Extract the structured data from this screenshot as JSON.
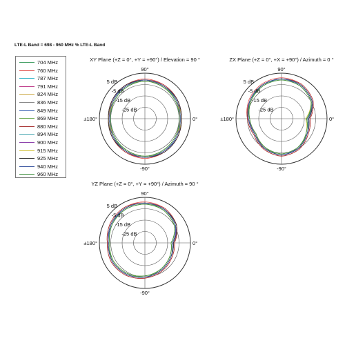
{
  "header": "LTE-L  Band = 698 - 960 MHz % LTE-L Band",
  "legend": [
    {
      "label": "704 MHz",
      "color": "#4aa36a"
    },
    {
      "label": "760 MHz",
      "color": "#e0504d"
    },
    {
      "label": "787 MHz",
      "color": "#31b4c6"
    },
    {
      "label": "791 MHz",
      "color": "#c0408c"
    },
    {
      "label": "824 MHz",
      "color": "#c8a43a"
    },
    {
      "label": "836 MHz",
      "color": "#8a8a8a"
    },
    {
      "label": "849 MHz",
      "color": "#4469b7"
    },
    {
      "label": "869 MHz",
      "color": "#6aa84f"
    },
    {
      "label": "880 MHz",
      "color": "#a83232"
    },
    {
      "label": "894 MHz",
      "color": "#46a5b0"
    },
    {
      "label": "900 MHz",
      "color": "#8e44ad"
    },
    {
      "label": "915 MHz",
      "color": "#d3c23a"
    },
    {
      "label": "925 MHz",
      "color": "#2f2f2f"
    },
    {
      "label": "940 MHz",
      "color": "#3a56a0"
    },
    {
      "label": "960 MHz",
      "color": "#3e8e3e"
    }
  ],
  "chart_data": [
    {
      "type": "line",
      "subtype": "polar",
      "title": "XY Plane (+Z = 0°, +Y = +90°) / Elevation = 90 °",
      "ring_labels": [
        "5 dB",
        "-5 dB",
        "-15 dB",
        "-25 dB"
      ],
      "ring_values": [
        5,
        -5,
        -15,
        -25
      ],
      "rlim": [
        -35,
        5
      ],
      "angle_labels": {
        "top": "90°",
        "right": "0°",
        "left": "±180°",
        "bottom": "-90°"
      },
      "angles_deg": [
        0,
        30,
        60,
        90,
        120,
        150,
        180,
        210,
        240,
        270,
        300,
        330
      ],
      "series_gain_db": [
        [
          -4,
          -3,
          -2,
          -1,
          -2,
          -3,
          -4,
          -3,
          -2,
          -1,
          -2,
          -3
        ],
        [
          -3,
          -2,
          -1,
          0,
          -1,
          -2,
          -3,
          -2,
          -1,
          0,
          -1,
          -2
        ],
        [
          -5,
          -4,
          -3,
          -2,
          -3,
          -4,
          -5,
          -4,
          -3,
          -2,
          -3,
          -4
        ],
        [
          -4,
          -3,
          -2,
          -1,
          -1,
          -2,
          -4,
          -3,
          -2,
          -1,
          -2,
          -3
        ],
        [
          -3,
          -3,
          -2,
          -1,
          -2,
          -3,
          -3,
          -3,
          -2,
          -1,
          -2,
          -3
        ],
        [
          -4,
          -3,
          -2,
          -2,
          -2,
          -3,
          -4,
          -3,
          -2,
          -2,
          -2,
          -3
        ],
        [
          -3,
          -2,
          -2,
          -1,
          -2,
          -2,
          -3,
          -2,
          -2,
          -1,
          -2,
          -2
        ],
        [
          -4,
          -3,
          -3,
          -2,
          -2,
          -3,
          -4,
          -3,
          -3,
          -2,
          -2,
          -3
        ],
        [
          -3,
          -2,
          -1,
          -1,
          -1,
          -2,
          -3,
          -2,
          -1,
          -1,
          -1,
          -2
        ],
        [
          -4,
          -3,
          -2,
          -1,
          -2,
          -3,
          -4,
          -3,
          -2,
          -1,
          -2,
          -3
        ],
        [
          -5,
          -3,
          -2,
          -1,
          -2,
          -3,
          -5,
          -3,
          -2,
          -1,
          -2,
          -3
        ],
        [
          -4,
          -4,
          -3,
          -2,
          -3,
          -4,
          -4,
          -4,
          -3,
          -2,
          -3,
          -4
        ],
        [
          -3,
          -2,
          -2,
          -1,
          -1,
          -2,
          -3,
          -2,
          -2,
          -1,
          -1,
          -2
        ],
        [
          -4,
          -3,
          -2,
          -1,
          -2,
          -3,
          -4,
          -3,
          -2,
          -1,
          -2,
          -3
        ],
        [
          -5,
          -4,
          -3,
          -2,
          -3,
          -4,
          -5,
          -4,
          -3,
          -2,
          -3,
          -4
        ]
      ]
    },
    {
      "type": "line",
      "subtype": "polar",
      "title": "ZX Plane (+Z = 0°, +X = +90°) / Azimuth = 0 °",
      "ring_labels": [
        "5 dB",
        "-5 dB",
        "-15 dB",
        "-25 dB"
      ],
      "ring_values": [
        5,
        -5,
        -15,
        -25
      ],
      "rlim": [
        -35,
        5
      ],
      "angle_labels": {
        "top": "90°",
        "right": "0°",
        "left": "±180°",
        "bottom": "-90°"
      },
      "angles_deg": [
        0,
        30,
        60,
        90,
        120,
        150,
        180,
        210,
        240,
        270,
        300,
        330
      ],
      "series_gain_db": [
        [
          -12,
          -4,
          -1,
          0,
          -1,
          -3,
          -6,
          -8,
          -5,
          -3,
          -5,
          -9
        ],
        [
          -10,
          -3,
          0,
          1,
          0,
          -2,
          -5,
          -7,
          -4,
          -2,
          -4,
          -8
        ],
        [
          -13,
          -5,
          -2,
          -1,
          -2,
          -4,
          -7,
          -9,
          -6,
          -4,
          -6,
          -10
        ],
        [
          -11,
          -4,
          -1,
          0,
          -1,
          -3,
          -6,
          -8,
          -5,
          -3,
          -5,
          -9
        ],
        [
          -12,
          -4,
          -1,
          0,
          -1,
          -3,
          -6,
          -9,
          -5,
          -3,
          -5,
          -9
        ],
        [
          -11,
          -4,
          -1,
          0,
          -1,
          -3,
          -6,
          -8,
          -5,
          -3,
          -5,
          -9
        ],
        [
          -12,
          -5,
          -2,
          0,
          -1,
          -3,
          -7,
          -8,
          -5,
          -3,
          -6,
          -9
        ],
        [
          -13,
          -4,
          -1,
          0,
          -1,
          -4,
          -6,
          -8,
          -6,
          -3,
          -5,
          -10
        ],
        [
          -10,
          -3,
          0,
          0,
          -1,
          -3,
          -5,
          -7,
          -4,
          -2,
          -4,
          -8
        ],
        [
          -12,
          -4,
          -1,
          0,
          -2,
          -3,
          -6,
          -8,
          -5,
          -3,
          -5,
          -9
        ],
        [
          -11,
          -4,
          -1,
          0,
          -1,
          -3,
          -6,
          -9,
          -5,
          -3,
          -5,
          -9
        ],
        [
          -14,
          -5,
          -2,
          -1,
          -2,
          -4,
          -7,
          -9,
          -6,
          -4,
          -6,
          -10
        ],
        [
          -11,
          -4,
          -1,
          0,
          -1,
          -3,
          -6,
          -8,
          -5,
          -3,
          -5,
          -9
        ],
        [
          -12,
          -4,
          -1,
          0,
          -1,
          -3,
          -6,
          -8,
          -5,
          -3,
          -5,
          -9
        ],
        [
          -13,
          -5,
          -2,
          -1,
          -2,
          -4,
          -7,
          -9,
          -6,
          -4,
          -6,
          -10
        ]
      ]
    },
    {
      "type": "line",
      "subtype": "polar",
      "title": "YZ Plane (+Z = 0°, +Y = +90°) / Azimuth = 90 °",
      "ring_labels": [
        "5 dB",
        "-5 dB",
        "-15 dB",
        "-25 dB"
      ],
      "ring_values": [
        5,
        -5,
        -15,
        -25
      ],
      "rlim": [
        -35,
        5
      ],
      "angle_labels": {
        "top": "90°",
        "right": "0°",
        "left": "±180°",
        "bottom": "-90°"
      },
      "angles_deg": [
        0,
        30,
        60,
        90,
        120,
        150,
        180,
        210,
        240,
        270,
        300,
        330
      ],
      "series_gain_db": [
        [
          -10,
          -4,
          -1,
          0,
          0,
          -1,
          -3,
          -2,
          -3,
          -5,
          -7,
          -9
        ],
        [
          -9,
          -3,
          0,
          1,
          1,
          0,
          -2,
          -1,
          -2,
          -4,
          -6,
          -8
        ],
        [
          -12,
          -5,
          -2,
          -1,
          -1,
          -2,
          -4,
          -3,
          -4,
          -6,
          -8,
          -10
        ],
        [
          -10,
          -4,
          -1,
          0,
          0,
          -1,
          -3,
          -2,
          -3,
          -5,
          -7,
          -9
        ],
        [
          -11,
          -4,
          -1,
          0,
          0,
          -1,
          -3,
          -2,
          -3,
          -5,
          -7,
          -9
        ],
        [
          -10,
          -4,
          -1,
          0,
          0,
          -1,
          -3,
          -2,
          -3,
          -5,
          -7,
          -9
        ],
        [
          -10,
          -4,
          -1,
          0,
          0,
          -2,
          -3,
          -2,
          -3,
          -5,
          -7,
          -9
        ],
        [
          -12,
          -5,
          -2,
          0,
          0,
          -1,
          -3,
          -3,
          -4,
          -5,
          -8,
          -10
        ],
        [
          -9,
          -3,
          0,
          0,
          1,
          0,
          -2,
          -1,
          -2,
          -4,
          -6,
          -8
        ],
        [
          -11,
          -4,
          -1,
          0,
          0,
          -1,
          -3,
          -2,
          -3,
          -5,
          -7,
          -9
        ],
        [
          -10,
          -4,
          -1,
          0,
          0,
          -1,
          -3,
          -2,
          -3,
          -5,
          -7,
          -9
        ],
        [
          -12,
          -5,
          -2,
          -1,
          -1,
          -2,
          -4,
          -3,
          -4,
          -6,
          -8,
          -10
        ],
        [
          -10,
          -3,
          -1,
          0,
          0,
          -1,
          -3,
          -2,
          -3,
          -5,
          -7,
          -9
        ],
        [
          -11,
          -4,
          -1,
          0,
          0,
          -1,
          -3,
          -2,
          -3,
          -5,
          -7,
          -9
        ],
        [
          -12,
          -5,
          -2,
          -1,
          -1,
          -2,
          -4,
          -3,
          -4,
          -6,
          -8,
          -10
        ]
      ]
    }
  ]
}
